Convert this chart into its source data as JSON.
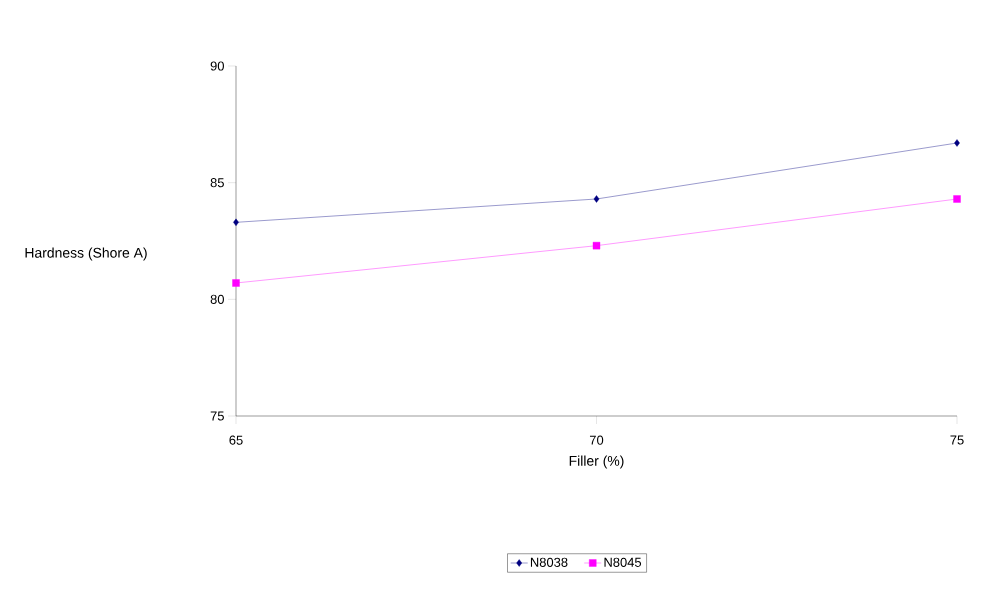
{
  "chart_data": {
    "type": "line",
    "xlabel": "Filler (%)",
    "ylabel": "Hardness (Shore A)",
    "x": [
      65,
      70,
      75
    ],
    "series": [
      {
        "name": "N8038",
        "color": "#000080",
        "marker": "diamond",
        "values": [
          83.3,
          84.3,
          86.7
        ]
      },
      {
        "name": "N8045",
        "color": "#ff00ff",
        "marker": "square",
        "values": [
          80.7,
          82.3,
          84.3
        ]
      }
    ],
    "xlim": [
      65,
      75
    ],
    "xticks": [
      65,
      70,
      75
    ],
    "ylim": [
      75,
      90
    ],
    "yticks": [
      75,
      80,
      85,
      90
    ],
    "legend": "bottom",
    "line_style": "solid"
  }
}
